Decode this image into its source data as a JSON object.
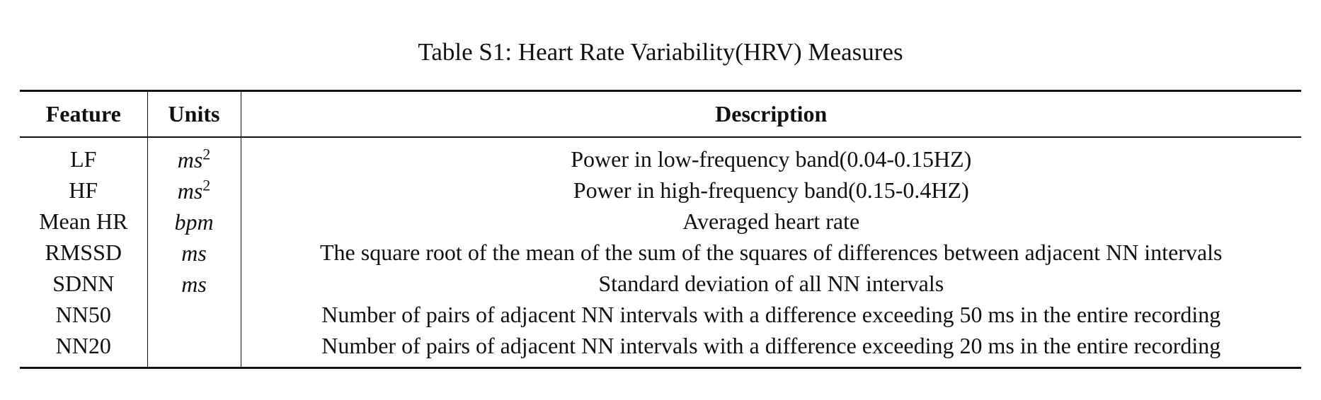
{
  "caption": "Table S1: Heart Rate Variability(HRV) Measures",
  "table": {
    "headers": {
      "feature": "Feature",
      "units": "Units",
      "description": "Description"
    },
    "rows": [
      {
        "feature": "LF",
        "unit_base": "ms",
        "unit_exp": "2",
        "description": "Power in low-frequency band(0.04-0.15HZ)"
      },
      {
        "feature": "HF",
        "unit_base": "ms",
        "unit_exp": "2",
        "description": "Power in high-frequency band(0.15-0.4HZ)"
      },
      {
        "feature": "Mean HR",
        "unit_base": "bpm",
        "unit_exp": "",
        "description": "Averaged heart rate"
      },
      {
        "feature": "RMSSD",
        "unit_base": "ms",
        "unit_exp": "",
        "description": "The square root of the mean of the sum of the squares of differences between adjacent NN intervals"
      },
      {
        "feature": "SDNN",
        "unit_base": "ms",
        "unit_exp": "",
        "description": "Standard deviation of all NN intervals"
      },
      {
        "feature": "NN50",
        "unit_base": "",
        "unit_exp": "",
        "description": "Number of pairs of adjacent NN intervals with a difference exceeding 50 ms in the entire recording"
      },
      {
        "feature": "NN20",
        "unit_base": "",
        "unit_exp": "",
        "description": "Number of pairs of adjacent NN intervals with a difference exceeding 20 ms in the entire recording"
      }
    ]
  }
}
